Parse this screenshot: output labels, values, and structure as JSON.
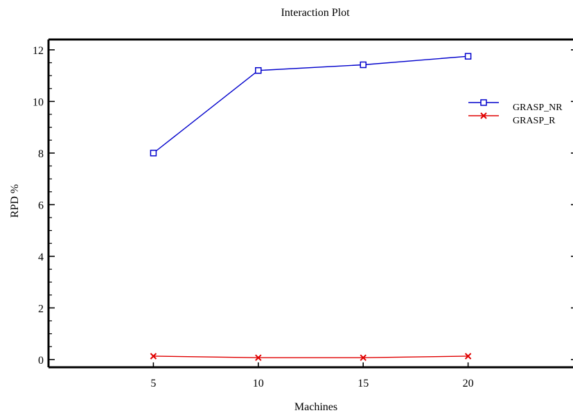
{
  "chart_data": {
    "type": "line",
    "title": "Interaction Plot",
    "xlabel": "Machines",
    "ylabel": "RPD %",
    "x": [
      5,
      10,
      15,
      20
    ],
    "xlim": [
      0,
      25
    ],
    "ylim": [
      -0.3,
      12.4
    ],
    "xticks": [
      5,
      10,
      15,
      20
    ],
    "yticks": [
      0,
      2,
      4,
      6,
      8,
      10,
      12
    ],
    "grid": false,
    "legend_position": "right",
    "series": [
      {
        "name": "GRASP_NR",
        "values": [
          8.0,
          11.2,
          11.42,
          11.75
        ],
        "color": "#0000cc",
        "marker": "square"
      },
      {
        "name": "GRASP_R",
        "values": [
          0.13,
          0.07,
          0.07,
          0.13
        ],
        "color": "#e00000",
        "marker": "x"
      }
    ]
  }
}
